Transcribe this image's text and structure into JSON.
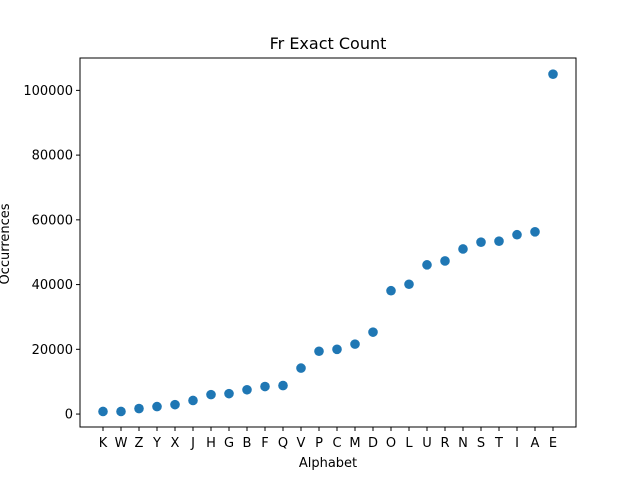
{
  "chart_data": {
    "type": "scatter",
    "title": "Fr Exact Count",
    "xlabel": "Alphabet",
    "ylabel": "Occurrences",
    "ylim": [
      -4000,
      110000
    ],
    "yticks": [
      0,
      20000,
      40000,
      60000,
      80000,
      100000
    ],
    "ytick_labels": [
      "0",
      "20000",
      "40000",
      "60000",
      "80000",
      "100000"
    ],
    "grid": false,
    "marker_color": "#1f77b4",
    "categories": [
      "K",
      "W",
      "Z",
      "Y",
      "X",
      "J",
      "H",
      "G",
      "B",
      "F",
      "Q",
      "V",
      "P",
      "C",
      "M",
      "D",
      "O",
      "L",
      "U",
      "R",
      "N",
      "S",
      "T",
      "I",
      "A",
      "E"
    ],
    "values": [
      800,
      800,
      1700,
      2300,
      2900,
      4200,
      6000,
      6300,
      7500,
      8500,
      8800,
      14200,
      19400,
      20000,
      21600,
      25300,
      38100,
      40100,
      46100,
      47300,
      51000,
      53100,
      53400,
      55400,
      56300,
      105000
    ]
  }
}
